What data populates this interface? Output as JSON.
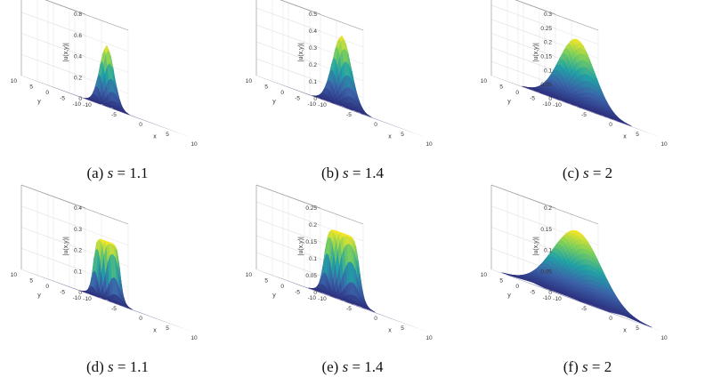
{
  "panels": [
    {
      "caption_label": "(a)",
      "caption_var": "s",
      "caption_eq": " = 1.1",
      "zlabel": "|u(x,y)|",
      "xlabel": "x",
      "ylabel": "y",
      "zmax": 0.8,
      "zticks": [
        "0",
        "0.2",
        "0.4",
        "0.6",
        "0.8"
      ],
      "peak": 0.58,
      "shape": "peak",
      "width": 1.6,
      "xticks": [
        "-10",
        "-5",
        "0",
        "5",
        "10"
      ],
      "yticks": [
        "-10",
        "-5",
        "0",
        "5",
        "10"
      ]
    },
    {
      "caption_label": "(b)",
      "caption_var": "s",
      "caption_eq": " = 1.4",
      "zlabel": "|u(x,y)|",
      "xlabel": "x",
      "ylabel": "y",
      "zmax": 0.5,
      "zticks": [
        "0",
        "0.1",
        "0.2",
        "0.3",
        "0.4",
        "0.5"
      ],
      "peak": 0.42,
      "shape": "peak",
      "width": 2.1,
      "xticks": [
        "-10",
        "-5",
        "0",
        "5",
        "10"
      ],
      "yticks": [
        "-10",
        "-5",
        "0",
        "5",
        "10"
      ]
    },
    {
      "caption_label": "(c)",
      "caption_var": "s",
      "caption_eq": " = 2",
      "zlabel": "|u(x,y)|",
      "xlabel": "x",
      "ylabel": "y",
      "zmax": 0.3,
      "zticks": [
        "0",
        "0.05",
        "0.1",
        "0.15",
        "0.2",
        "0.25",
        "0.3"
      ],
      "peak": 0.24,
      "shape": "dome",
      "width": 4.0,
      "xticks": [
        "-10",
        "-5",
        "0",
        "5",
        "10"
      ],
      "yticks": [
        "-10",
        "-5",
        "0",
        "5",
        "10"
      ]
    },
    {
      "caption_label": "(d)",
      "caption_var": "s",
      "caption_eq": " = 1.1",
      "zlabel": "|u(x,y)|",
      "xlabel": "x",
      "ylabel": "y",
      "zmax": 0.4,
      "zticks": [
        "0",
        "0.1",
        "0.2",
        "0.3",
        "0.4"
      ],
      "peak": 0.28,
      "shape": "plateau",
      "width": 2.2,
      "xticks": [
        "-10",
        "-5",
        "0",
        "5",
        "10"
      ],
      "yticks": [
        "-10",
        "-5",
        "0",
        "5",
        "10"
      ]
    },
    {
      "caption_label": "(e)",
      "caption_var": "s",
      "caption_eq": " = 1.4",
      "zlabel": "|u(x,y)|",
      "xlabel": "x",
      "ylabel": "y",
      "zmax": 0.25,
      "zticks": [
        "0",
        "0.05",
        "0.1",
        "0.15",
        "0.2",
        "0.25"
      ],
      "peak": 0.2,
      "shape": "plateau",
      "width": 2.9,
      "xticks": [
        "-10",
        "-5",
        "0",
        "5",
        "10"
      ],
      "yticks": [
        "-10",
        "-5",
        "0",
        "5",
        "10"
      ]
    },
    {
      "caption_label": "(f)",
      "caption_var": "s",
      "caption_eq": " = 2",
      "zlabel": "|u(x,y)|",
      "xlabel": "x",
      "ylabel": "y",
      "zmax": 0.2,
      "zticks": [
        "0",
        "0.05",
        "0.1",
        "0.15",
        "0.2"
      ],
      "peak": 0.165,
      "shape": "dome",
      "width": 5.5,
      "xticks": [
        "-10",
        "-5",
        "0",
        "5",
        "10"
      ],
      "yticks": [
        "-10",
        "-5",
        "0",
        "5",
        "10"
      ]
    }
  ],
  "colors": {
    "floor": "#2f2c7a",
    "low": "#3b3b9c",
    "mid": "#21a2a6",
    "high": "#f4e51d",
    "top": "#fde725"
  }
}
